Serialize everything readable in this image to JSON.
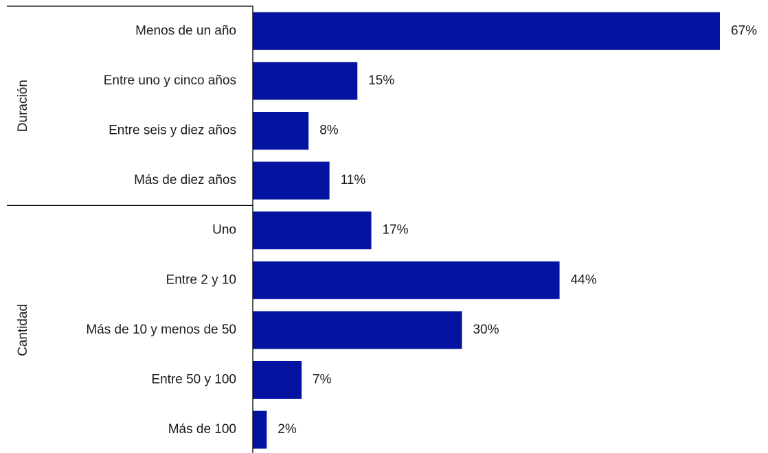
{
  "chart_data": {
    "type": "bar",
    "orientation": "horizontal",
    "groups": [
      {
        "name": "Duración",
        "categories": [
          "Menos de un año",
          "Entre uno y cinco años",
          "Entre seis y diez años",
          "Más de diez años"
        ],
        "values": [
          67,
          15,
          8,
          11
        ]
      },
      {
        "name": "Cantidad",
        "categories": [
          "Uno",
          "Entre 2 y 10",
          "Más de 10 y menos de 50",
          "Entre 50 y 100",
          "Más de 100"
        ],
        "values": [
          17,
          44,
          30,
          7,
          2
        ]
      }
    ],
    "value_suffix": "%",
    "xlim": [
      0,
      67
    ],
    "bar_color": "#0414a0",
    "grid": false,
    "legend": "none"
  }
}
